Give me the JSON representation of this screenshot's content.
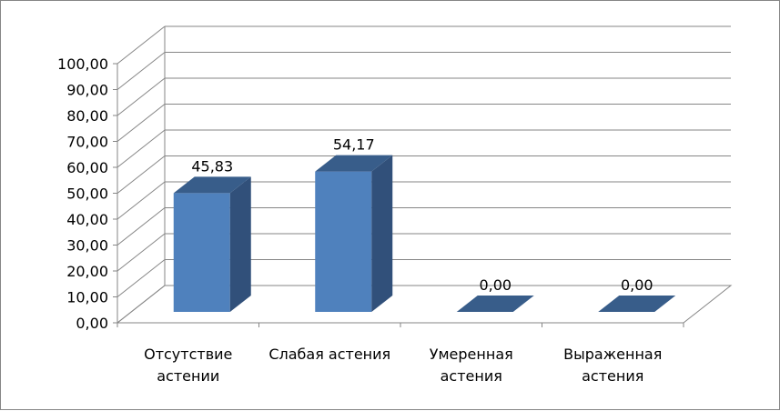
{
  "chart_data": {
    "type": "bar",
    "categories": [
      [
        "Отсутствие",
        "астении"
      ],
      [
        "Слабая астения"
      ],
      [
        "Умеренная",
        "астения"
      ],
      [
        "Выраженная",
        "астения"
      ]
    ],
    "values": [
      45.83,
      54.17,
      0,
      0
    ],
    "data_labels": [
      "45,83",
      "54,17",
      "0,00",
      "0,00"
    ],
    "ylim": [
      0,
      100
    ],
    "yticks": [
      "0,00",
      "10,00",
      "20,00",
      "30,00",
      "40,00",
      "50,00",
      "60,00",
      "70,00",
      "80,00",
      "90,00",
      "100,00"
    ],
    "grid": true,
    "three_d": true,
    "legend": "none",
    "colors": {
      "front": "#4f81bd",
      "side": "#31507a",
      "top": "#385d8a",
      "grid": "#868686"
    }
  }
}
